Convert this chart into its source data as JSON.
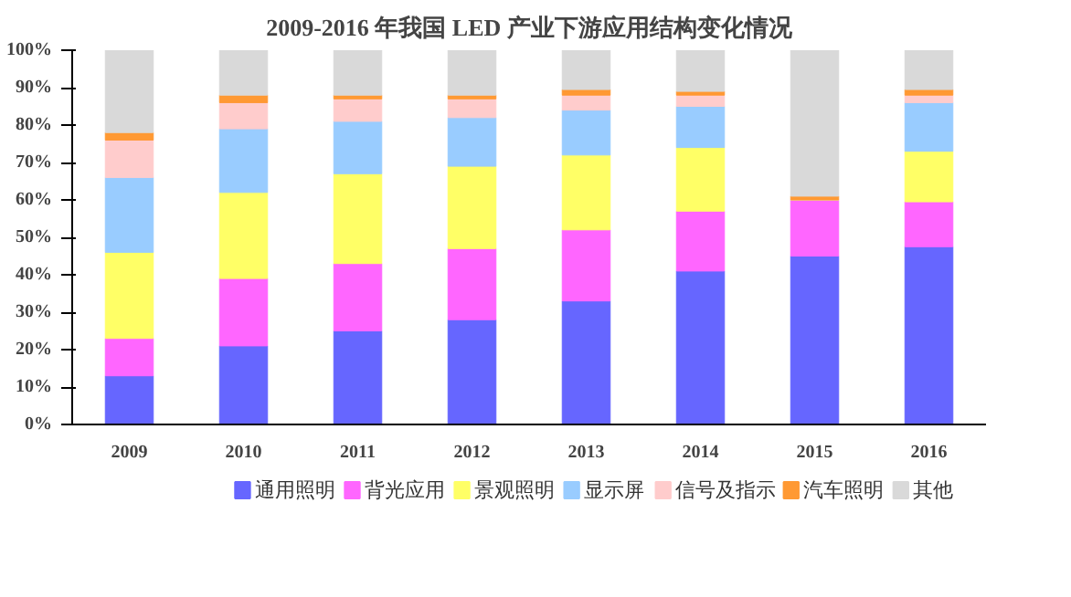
{
  "chart_data": {
    "type": "bar",
    "stacked": true,
    "title": "2009-2016 年我国 LED 产业下游应用结构变化情况",
    "categories": [
      "2009",
      "2010",
      "2011",
      "2012",
      "2013",
      "2014",
      "2015",
      "2016"
    ],
    "series": [
      {
        "name": "通用照明",
        "color": "#6666ff",
        "values": [
          13,
          21,
          25,
          28,
          33,
          41,
          45,
          47.5
        ]
      },
      {
        "name": "背光应用",
        "color": "#ff66ff",
        "values": [
          10,
          18,
          18,
          19,
          19,
          16,
          15,
          12
        ]
      },
      {
        "name": "景观照明",
        "color": "#ffff66",
        "values": [
          23,
          23,
          24,
          22,
          20,
          17,
          0,
          13.5
        ]
      },
      {
        "name": "显示屏",
        "color": "#99ccff",
        "values": [
          20,
          17,
          14,
          13,
          12,
          11,
          0,
          13
        ]
      },
      {
        "name": "信号及指示",
        "color": "#ffcccc",
        "values": [
          10,
          7,
          6,
          5,
          4,
          3,
          0,
          2
        ]
      },
      {
        "name": "汽车照明",
        "color": "#ff9933",
        "values": [
          2,
          2,
          1,
          1,
          1.5,
          1,
          1,
          1.5
        ]
      },
      {
        "name": "其他",
        "color": "#d9d9d9",
        "values": [
          22,
          12,
          12,
          12,
          10.5,
          11,
          39,
          10.5
        ]
      }
    ],
    "ylim": [
      0,
      100
    ],
    "yticks": [
      {
        "value": 0,
        "label": "0%"
      },
      {
        "value": 10,
        "label": "10%"
      },
      {
        "value": 20,
        "label": "20%"
      },
      {
        "value": 30,
        "label": "30%"
      },
      {
        "value": 40,
        "label": "40%"
      },
      {
        "value": 50,
        "label": "50%"
      },
      {
        "value": 60,
        "label": "60%"
      },
      {
        "value": 70,
        "label": "70%"
      },
      {
        "value": 80,
        "label": "80%"
      },
      {
        "value": 90,
        "label": "90%"
      },
      {
        "value": 100,
        "label": "100%"
      }
    ],
    "grid": false,
    "legend": "bottom"
  }
}
